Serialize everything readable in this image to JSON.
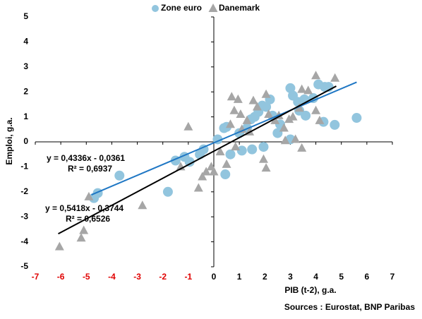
{
  "chart_data": {
    "type": "scatter",
    "x_label": "PIB (t-2), g.a.",
    "y_label": "Emploi, g.a.",
    "source": "Sources : Eurostat, BNP Paribas",
    "xlim": [
      -7,
      7
    ],
    "ylim": [
      -5,
      5
    ],
    "xticks": [
      -7,
      -6,
      -5,
      -4,
      -3,
      -2,
      -1,
      0,
      1,
      2,
      3,
      4,
      5,
      6,
      7
    ],
    "yticks": [
      -5,
      -4,
      -3,
      -2,
      -1,
      0,
      1,
      2,
      3,
      4,
      5
    ],
    "negative_tick_color": "#e00000",
    "legend": "top",
    "series": [
      {
        "name": "Zone euro",
        "color": "#92c5de",
        "marker": "circle",
        "x": [
          5.6,
          4.74,
          4.3,
          3.0,
          4.1,
          4.35,
          4.5,
          3.9,
          3.55,
          3.3,
          3.1,
          3.0,
          2.6,
          2.5,
          2.2,
          2.05,
          1.9,
          1.75,
          1.95,
          1.5,
          1.1,
          0.65,
          1.0,
          1.3,
          1.6,
          0.5,
          0.4,
          0.15,
          0.45,
          -0.4,
          -0.55,
          -0.95,
          -1.15,
          -1.5,
          -1.8,
          -3.7,
          -4.55,
          -4.7,
          3.6,
          3.35,
          1.45,
          2.3
        ],
        "values": [
          0.96,
          0.68,
          0.8,
          2.15,
          2.3,
          2.2,
          2.2,
          1.75,
          1.7,
          1.6,
          1.85,
          0.1,
          0.7,
          0.35,
          1.7,
          1.4,
          1.45,
          1.2,
          -0.2,
          -0.3,
          -0.35,
          -0.5,
          0.35,
          0.55,
          1.0,
          0.6,
          0.55,
          0.1,
          -1.3,
          -0.3,
          -0.5,
          -0.8,
          -0.6,
          -0.75,
          -2.0,
          -1.35,
          -2.05,
          -2.25,
          1.05,
          1.25,
          0.9,
          1.05
        ],
        "trend_x": [
          -4.8,
          5.6
        ],
        "trend_y": [
          -2.12,
          2.39
        ],
        "trend_color": "#1f77c4",
        "equation": "y = 0,4336x - 0,0361",
        "r2": "R² = 0,6937"
      },
      {
        "name": "Danemark",
        "color": "#a6a6a6",
        "marker": "triangle",
        "x": [
          -6.05,
          -5.2,
          -5.1,
          -2.8,
          -4.9,
          -1.0,
          -0.6,
          -0.45,
          -0.3,
          -0.1,
          0.0,
          0.25,
          0.5,
          0.65,
          0.7,
          0.95,
          1.05,
          1.3,
          1.4,
          1.55,
          1.7,
          1.95,
          2.05,
          2.05,
          2.15,
          2.4,
          2.55,
          2.75,
          2.8,
          2.95,
          3.1,
          3.2,
          3.35,
          3.45,
          3.45,
          3.7,
          4.0,
          4.0,
          4.15,
          4.75,
          0.8,
          1.1,
          0.85,
          -1.3
        ],
        "values": [
          -4.2,
          -3.85,
          -3.55,
          -2.55,
          -2.2,
          0.6,
          -1.85,
          -1.4,
          -1.2,
          -1.0,
          -1.2,
          -0.4,
          -0.9,
          0.7,
          1.8,
          1.7,
          1.1,
          0.85,
          0.4,
          1.65,
          1.4,
          -0.7,
          -1.05,
          1.9,
          1.1,
          0.85,
          1.05,
          0.55,
          0.05,
          0.9,
          1.0,
          0.1,
          1.35,
          -0.25,
          2.1,
          2.05,
          2.65,
          1.25,
          0.85,
          2.55,
          1.25,
          0.5,
          -0.2,
          -1.0
        ],
        "trend_x": [
          -6.1,
          4.8
        ],
        "trend_y": [
          -3.68,
          2.23
        ],
        "trend_color": "#000000",
        "equation": "y = 0,5418x - 0,3744",
        "r2": "R² = 0,6526"
      }
    ]
  }
}
